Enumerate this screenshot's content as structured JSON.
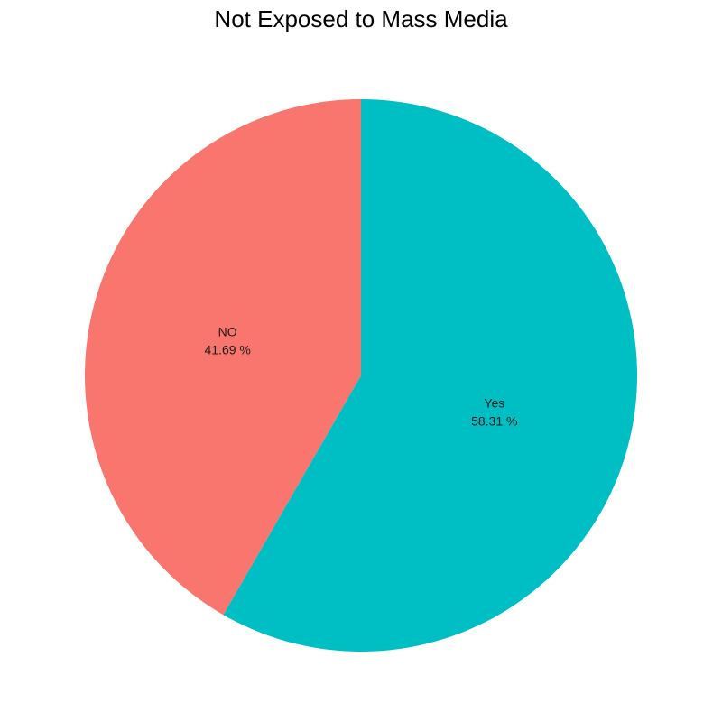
{
  "chart_data": {
    "type": "pie",
    "title": "Not Exposed to Mass Media",
    "slices": [
      {
        "category": "NO",
        "value": 41.69,
        "label": "41.69 %",
        "color": "#F8766D"
      },
      {
        "category": "Yes",
        "value": 58.31,
        "label": "58.31 %",
        "color": "#00BFC4"
      }
    ],
    "start": "12 o'clock",
    "direction": "clockwise"
  }
}
